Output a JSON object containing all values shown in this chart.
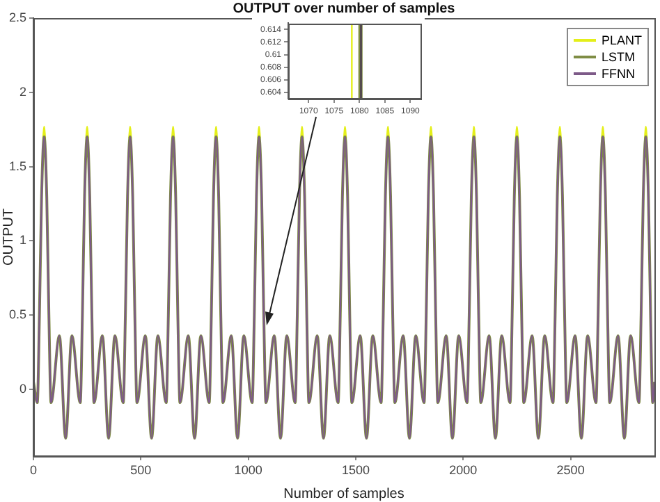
{
  "chart_data": [
    {
      "type": "line",
      "title": "OUTPUT over number of samples",
      "xlabel": "Number of samples",
      "ylabel": "OUTPUT",
      "x": [
        0,
        18,
        28,
        38,
        50,
        62,
        72,
        82,
        121,
        150,
        179,
        218,
        228,
        238,
        250,
        262,
        272,
        282,
        321,
        350,
        379,
        418,
        428,
        438,
        450,
        462,
        472,
        482,
        521,
        550,
        579,
        618,
        628,
        638,
        650,
        662,
        672,
        682,
        721,
        750,
        779,
        818,
        828,
        838,
        850,
        862,
        872,
        882,
        921,
        950,
        979,
        1018,
        1028,
        1038,
        1050,
        1062,
        1072,
        1082,
        1121,
        1150,
        1179,
        1218,
        1228,
        1238,
        1250,
        1262,
        1272,
        1282,
        1321,
        1350,
        1379,
        1418,
        1428,
        1438,
        1450,
        1462,
        1472,
        1482,
        1521,
        1550,
        1579,
        1618,
        1628,
        1638,
        1650,
        1662,
        1672,
        1682,
        1721,
        1750,
        1779,
        1818,
        1828,
        1838,
        1850,
        1862,
        1872,
        1882,
        1921,
        1950,
        1979,
        2018,
        2028,
        2038,
        2050,
        2062,
        2072,
        2082,
        2121,
        2150,
        2179,
        2218,
        2228,
        2238,
        2250,
        2262,
        2272,
        2282,
        2321,
        2350,
        2379,
        2418,
        2428,
        2438,
        2450,
        2462,
        2472,
        2482,
        2521,
        2550,
        2579,
        2618,
        2628,
        2638,
        2650,
        2662,
        2672,
        2682,
        2721,
        2750,
        2779,
        2818,
        2828,
        2838,
        2850,
        2862,
        2872,
        2882,
        2890
      ],
      "series": [
        {
          "name": "PLANT",
          "color": "#e4ef1a",
          "x": [
            45,
            50,
            55,
            150,
            245,
            250,
            255,
            350,
            445,
            450,
            455,
            550,
            645,
            650,
            655,
            750,
            845,
            850,
            855,
            950,
            1045,
            1050,
            1055,
            1150,
            1245,
            1250,
            1255,
            1350,
            1445,
            1450,
            1455,
            1550,
            1645,
            1650,
            1655,
            1750,
            1845,
            1850,
            1855,
            1950,
            2045,
            2050,
            2055,
            2150,
            2245,
            2250,
            2255,
            2350,
            2445,
            2450,
            2455,
            2550,
            2645,
            2650,
            2655,
            2750,
            2845,
            2850,
            2855
          ],
          "values": [
            1.69,
            1.77,
            1.69,
            null,
            1.69,
            1.77,
            1.69,
            null,
            1.69,
            1.77,
            1.69,
            null,
            1.69,
            1.77,
            1.69,
            null,
            1.69,
            1.77,
            1.69,
            null,
            1.69,
            1.77,
            1.69,
            null,
            1.69,
            1.77,
            1.69,
            null,
            1.69,
            1.77,
            1.69,
            null,
            1.69,
            1.77,
            1.69,
            null,
            1.69,
            1.77,
            1.69,
            null,
            1.69,
            1.77,
            1.69,
            null,
            1.69,
            1.77,
            1.69,
            null,
            1.69,
            1.77,
            1.69,
            null,
            1.69,
            1.77,
            1.69,
            null,
            1.69,
            1.77,
            1.69
          ]
        },
        {
          "name": "LSTM",
          "color": "#7f8d45",
          "values": [
            0.05,
            -0.09,
            0.5,
            1.3,
            1.7,
            1.3,
            0.5,
            -0.09,
            0.36,
            -0.33,
            0.36,
            -0.09,
            0.5,
            1.3,
            1.7,
            1.3,
            0.5,
            -0.09,
            0.36,
            -0.33,
            0.36,
            -0.09,
            0.5,
            1.3,
            1.7,
            1.3,
            0.5,
            -0.09,
            0.36,
            -0.33,
            0.36,
            -0.09,
            0.5,
            1.3,
            1.7,
            1.3,
            0.5,
            -0.09,
            0.36,
            -0.33,
            0.36,
            -0.09,
            0.5,
            1.3,
            1.7,
            1.3,
            0.5,
            -0.09,
            0.36,
            -0.33,
            0.36,
            -0.09,
            0.5,
            1.3,
            1.7,
            1.3,
            0.5,
            -0.09,
            0.36,
            -0.33,
            0.36,
            -0.09,
            0.5,
            1.3,
            1.7,
            1.3,
            0.5,
            -0.09,
            0.36,
            -0.33,
            0.36,
            -0.09,
            0.5,
            1.3,
            1.7,
            1.3,
            0.5,
            -0.09,
            0.36,
            -0.33,
            0.36,
            -0.09,
            0.5,
            1.3,
            1.7,
            1.3,
            0.5,
            -0.09,
            0.36,
            -0.33,
            0.36,
            -0.09,
            0.5,
            1.3,
            1.7,
            1.3,
            0.5,
            -0.09,
            0.36,
            -0.33,
            0.36,
            -0.09,
            0.5,
            1.3,
            1.7,
            1.3,
            0.5,
            -0.09,
            0.36,
            -0.33,
            0.36,
            -0.09,
            0.5,
            1.3,
            1.7,
            1.3,
            0.5,
            -0.09,
            0.36,
            -0.33,
            0.36,
            -0.09,
            0.5,
            1.3,
            1.7,
            1.3,
            0.5,
            -0.09,
            0.36,
            -0.33,
            0.36,
            -0.09,
            0.5,
            1.3,
            1.7,
            1.3,
            0.5,
            -0.09,
            0.36,
            -0.33,
            0.36,
            -0.09,
            0.5,
            1.3,
            1.7,
            1.3,
            0.5,
            -0.09,
            0.05
          ]
        },
        {
          "name": "FFNN",
          "color": "#7d5a88",
          "values": [
            0.05,
            -0.09,
            0.5,
            1.3,
            1.7,
            1.3,
            0.5,
            -0.09,
            0.36,
            -0.33,
            0.36,
            -0.09,
            0.5,
            1.3,
            1.7,
            1.3,
            0.5,
            -0.09,
            0.36,
            -0.33,
            0.36,
            -0.09,
            0.5,
            1.3,
            1.7,
            1.3,
            0.5,
            -0.09,
            0.36,
            -0.33,
            0.36,
            -0.09,
            0.5,
            1.3,
            1.7,
            1.3,
            0.5,
            -0.09,
            0.36,
            -0.33,
            0.36,
            -0.09,
            0.5,
            1.3,
            1.7,
            1.3,
            0.5,
            -0.09,
            0.36,
            -0.33,
            0.36,
            -0.09,
            0.5,
            1.3,
            1.7,
            1.3,
            0.5,
            -0.09,
            0.36,
            -0.33,
            0.36,
            -0.09,
            0.5,
            1.3,
            1.7,
            1.3,
            0.5,
            -0.09,
            0.36,
            -0.33,
            0.36,
            -0.09,
            0.5,
            1.3,
            1.7,
            1.3,
            0.5,
            -0.09,
            0.36,
            -0.33,
            0.36,
            -0.09,
            0.5,
            1.3,
            1.7,
            1.3,
            0.5,
            -0.09,
            0.36,
            -0.33,
            0.36,
            -0.09,
            0.5,
            1.3,
            1.7,
            1.3,
            0.5,
            -0.09,
            0.36,
            -0.33,
            0.36,
            -0.09,
            0.5,
            1.3,
            1.7,
            1.3,
            0.5,
            -0.09,
            0.36,
            -0.33,
            0.36,
            -0.09,
            0.5,
            1.3,
            1.7,
            1.3,
            0.5,
            -0.09,
            0.36,
            -0.33,
            0.36,
            -0.09,
            0.5,
            1.3,
            1.7,
            1.3,
            0.5,
            -0.09,
            0.36,
            -0.33,
            0.36,
            -0.09,
            0.5,
            1.3,
            1.7,
            1.3,
            0.5,
            -0.09,
            0.36,
            -0.33,
            0.36,
            -0.09,
            0.5,
            1.3,
            1.7,
            1.3,
            0.5,
            -0.09,
            0.05
          ]
        }
      ],
      "xlim": [
        0,
        2890
      ],
      "xticks": [
        0,
        500,
        1000,
        1500,
        2000,
        2500
      ],
      "ylim": [
        -0.45,
        2.5
      ],
      "yticks": [
        0,
        0.5,
        1,
        1.5,
        2,
        2.5
      ],
      "grid": false,
      "legend": "top right",
      "marker": "none",
      "line_style": "solid"
    },
    {
      "type": "line",
      "series": [
        {
          "color": "#e4ef1a",
          "x": [
            1078.5,
            1078.5
          ],
          "values": [
            0.6031,
            0.6149
          ]
        },
        {
          "color": "#7f8d45",
          "x": [
            1080.2,
            1080.2
          ],
          "values": [
            0.6031,
            0.6149
          ]
        },
        {
          "color": "#4a3a50",
          "x": [
            1080.3,
            1080.3
          ],
          "values": [
            0.6031,
            0.6149
          ]
        }
      ],
      "xlim": [
        1066,
        1092
      ],
      "xticks": [
        1070,
        1075,
        1080,
        1085,
        1090
      ],
      "ylim": [
        0.603,
        0.615
      ],
      "yticks": [
        0.604,
        0.606,
        0.608,
        0.61,
        0.612,
        0.614
      ],
      "grid": false,
      "marker": "none",
      "line_style": "solid"
    }
  ]
}
